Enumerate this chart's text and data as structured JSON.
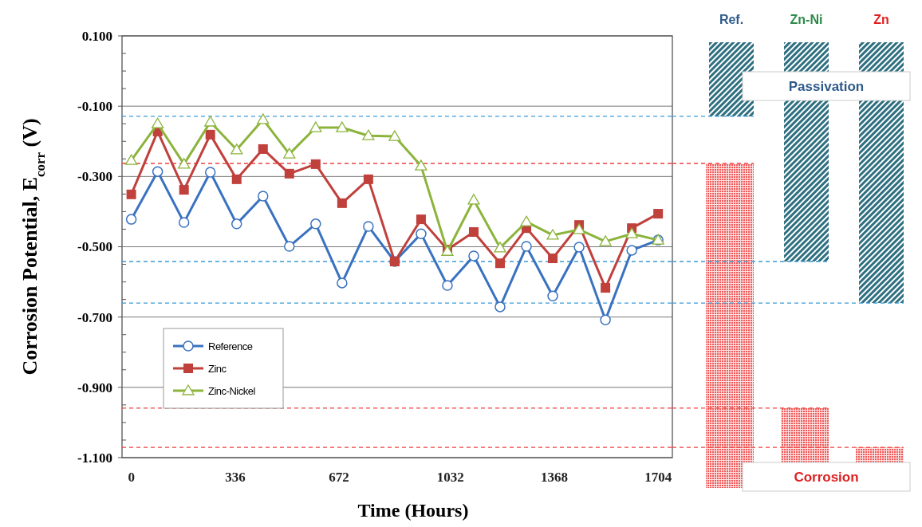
{
  "chart_data": {
    "type": "line",
    "xlabel": "Time (Hours)",
    "ylabel": "Corrosion Potential, E$_{corr}$ (V)",
    "x": [
      0,
      85.2,
      170.4,
      255.6,
      340.8,
      426,
      511.2,
      596.4,
      681.6,
      766.8,
      852,
      937.2,
      1022.4,
      1107.6,
      1192.8,
      1278,
      1363.2,
      1448.4,
      1533.6,
      1618.8,
      1704
    ],
    "xlim": [
      -30,
      1750
    ],
    "xticks": [
      0,
      336,
      672,
      1032,
      1368,
      1704
    ],
    "ylim": [
      -1.1,
      0.1
    ],
    "yticks": [
      {
        "value": 0.1,
        "label": "0.100"
      },
      {
        "value": -0.1,
        "label": "-0.100"
      },
      {
        "value": -0.3,
        "label": "-0.300"
      },
      {
        "value": -0.5,
        "label": "-0.500"
      },
      {
        "value": -0.7,
        "label": "-0.700"
      },
      {
        "value": -0.9,
        "label": "-0.900"
      },
      {
        "value": -1.1,
        "label": "-1.100"
      }
    ],
    "grid": "y",
    "legend": "bottom left",
    "line_style": "solid",
    "series": [
      {
        "name": "Reference",
        "color": "#3a72c0",
        "marker": "circle",
        "values": [
          -0.422,
          -0.286,
          -0.431,
          -0.288,
          -0.435,
          -0.356,
          -0.499,
          -0.435,
          -0.603,
          -0.442,
          -0.542,
          -0.463,
          -0.61,
          -0.526,
          -0.671,
          -0.499,
          -0.64,
          -0.501,
          -0.708,
          -0.51,
          -0.481
        ]
      },
      {
        "name": "Zinc",
        "color": "#c0403c",
        "marker": "square",
        "values": [
          -0.351,
          -0.172,
          -0.338,
          -0.181,
          -0.308,
          -0.222,
          -0.292,
          -0.265,
          -0.376,
          -0.308,
          -0.542,
          -0.422,
          -0.508,
          -0.458,
          -0.547,
          -0.447,
          -0.533,
          -0.438,
          -0.617,
          -0.447,
          -0.406
        ]
      },
      {
        "name": "Zinc-Nickel",
        "color": "#8cb43c",
        "marker": "triangle",
        "values": [
          -0.254,
          -0.15,
          -0.265,
          -0.145,
          -0.224,
          -0.138,
          -0.236,
          -0.161,
          -0.161,
          -0.184,
          -0.186,
          -0.27,
          -0.513,
          -0.367,
          -0.503,
          -0.429,
          -0.467,
          -0.451,
          -0.485,
          -0.463,
          -0.481
        ]
      }
    ],
    "ref_lines": [
      {
        "axis": "y",
        "value": -0.129,
        "color": "#3a9ad8",
        "line_style": "dashed"
      },
      {
        "axis": "y",
        "value": -0.263,
        "color": "#f04040",
        "line_style": "dashed"
      },
      {
        "axis": "y",
        "value": -0.542,
        "color": "#3a9ad8",
        "line_style": "dashed"
      },
      {
        "axis": "y",
        "value": -0.66,
        "color": "#3a9ad8",
        "line_style": "dashed"
      },
      {
        "axis": "y",
        "value": -0.959,
        "color": "#f04040",
        "line_style": "dashed"
      },
      {
        "axis": "y",
        "value": -1.071,
        "color": "#f04040",
        "line_style": "dashed"
      }
    ],
    "annotations": [
      "Ref.",
      "Zn-Ni",
      "Zn",
      "Passivation",
      "Corrosion"
    ]
  }
}
